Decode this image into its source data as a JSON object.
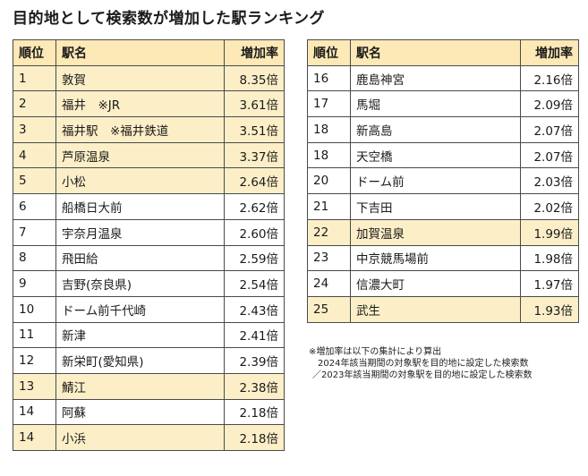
{
  "title": "目的地として検索数が増加した駅ランキング",
  "headers": {
    "rank": "順位",
    "station": "駅名",
    "rate": "増加率"
  },
  "left_rows": [
    {
      "rank": "1",
      "station": "敦賀",
      "rate": "8.35倍",
      "highlight": true
    },
    {
      "rank": "2",
      "station": "福井　※JR",
      "rate": "3.61倍",
      "highlight": true
    },
    {
      "rank": "3",
      "station": "福井駅　※福井鉄道",
      "rate": "3.51倍",
      "highlight": true
    },
    {
      "rank": "4",
      "station": "芦原温泉",
      "rate": "3.37倍",
      "highlight": true
    },
    {
      "rank": "5",
      "station": "小松",
      "rate": "2.64倍",
      "highlight": true
    },
    {
      "rank": "6",
      "station": "船橋日大前",
      "rate": "2.62倍",
      "highlight": false
    },
    {
      "rank": "7",
      "station": "宇奈月温泉",
      "rate": "2.60倍",
      "highlight": false
    },
    {
      "rank": "8",
      "station": "飛田給",
      "rate": "2.59倍",
      "highlight": false
    },
    {
      "rank": "9",
      "station": "吉野(奈良県)",
      "rate": "2.54倍",
      "highlight": false
    },
    {
      "rank": "10",
      "station": "ドーム前千代崎",
      "rate": "2.43倍",
      "highlight": false
    },
    {
      "rank": "11",
      "station": "新津",
      "rate": "2.41倍",
      "highlight": false
    },
    {
      "rank": "12",
      "station": "新栄町(愛知県)",
      "rate": "2.39倍",
      "highlight": false
    },
    {
      "rank": "13",
      "station": "鯖江",
      "rate": "2.38倍",
      "highlight": true
    },
    {
      "rank": "14",
      "station": "阿蘇",
      "rate": "2.18倍",
      "highlight": false
    },
    {
      "rank": "14",
      "station": "小浜",
      "rate": "2.18倍",
      "highlight": true
    }
  ],
  "right_rows": [
    {
      "rank": "16",
      "station": "鹿島神宮",
      "rate": "2.16倍",
      "highlight": false
    },
    {
      "rank": "17",
      "station": "馬堀",
      "rate": "2.09倍",
      "highlight": false
    },
    {
      "rank": "18",
      "station": "新高島",
      "rate": "2.07倍",
      "highlight": false
    },
    {
      "rank": "18",
      "station": "天空橋",
      "rate": "2.07倍",
      "highlight": false
    },
    {
      "rank": "20",
      "station": "ドーム前",
      "rate": "2.03倍",
      "highlight": false
    },
    {
      "rank": "21",
      "station": "下吉田",
      "rate": "2.02倍",
      "highlight": false
    },
    {
      "rank": "22",
      "station": "加賀温泉",
      "rate": "1.99倍",
      "highlight": true
    },
    {
      "rank": "23",
      "station": "中京競馬場前",
      "rate": "1.98倍",
      "highlight": false
    },
    {
      "rank": "24",
      "station": "信濃大町",
      "rate": "1.97倍",
      "highlight": false
    },
    {
      "rank": "25",
      "station": "武生",
      "rate": "1.93倍",
      "highlight": true
    }
  ],
  "note": [
    "※増加率は以下の集計により算出",
    "2024年該当期間の対象駅を目的地に設定した検索数",
    "／2023年該当期間の対象駅を目的地に設定した検索数"
  ]
}
